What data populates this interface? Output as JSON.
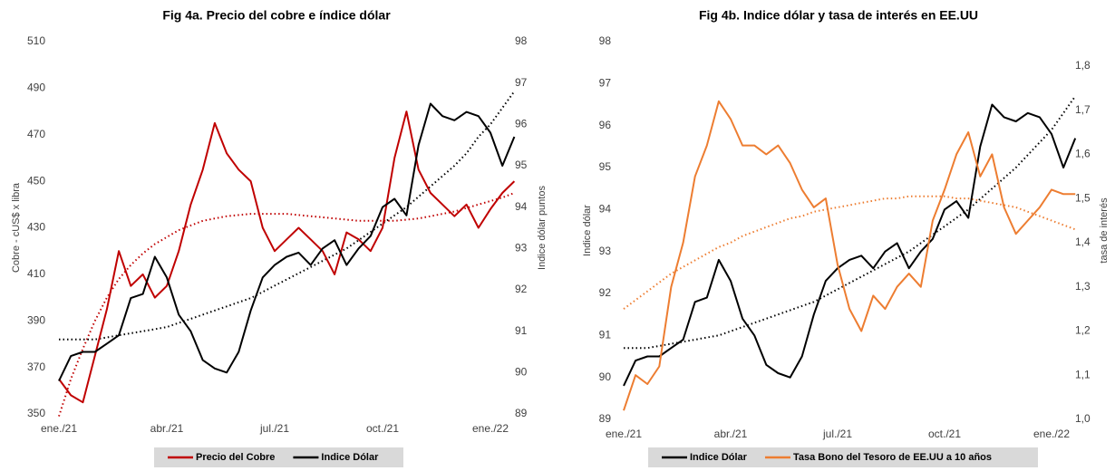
{
  "chart_data": [
    {
      "type": "line",
      "title": "Fig 4a. Precio del cobre e índice dólar",
      "ylabel": "Cobre - cUS$ x libra",
      "y2label": "Indice dólar puntos",
      "categories": [
        "ene./21",
        null,
        null,
        null,
        null,
        null,
        null,
        null,
        null,
        "abr./21",
        null,
        null,
        null,
        null,
        null,
        null,
        null,
        null,
        "jul./21",
        null,
        null,
        null,
        null,
        null,
        null,
        null,
        null,
        "oct./21",
        null,
        null,
        null,
        null,
        null,
        null,
        null,
        null,
        "ene./22",
        null,
        null
      ],
      "ylim": [
        350,
        510
      ],
      "yticks": [
        350,
        370,
        390,
        410,
        430,
        450,
        470,
        490,
        510
      ],
      "y2lim": [
        89,
        98
      ],
      "y2ticks": [
        89,
        90,
        91,
        92,
        93,
        94,
        95,
        96,
        97,
        98
      ],
      "series": [
        {
          "name": "Precio del Cobre",
          "color": "#c00000",
          "values": [
            365,
            358,
            355,
            375,
            395,
            420,
            405,
            410,
            400,
            405,
            420,
            440,
            455,
            475,
            462,
            455,
            450,
            430,
            420,
            425,
            430,
            425,
            420,
            410,
            428,
            425,
            420,
            430,
            460,
            480,
            455,
            445,
            440,
            435,
            440,
            430,
            438,
            445,
            450
          ],
          "trend": [
            349,
            365,
            378,
            390,
            400,
            408,
            414,
            419,
            423,
            426,
            429,
            431,
            433,
            434,
            435,
            435.5,
            436,
            436,
            436,
            436,
            435.5,
            435,
            434.5,
            434,
            433.5,
            433,
            433,
            433,
            433,
            433.5,
            434,
            435,
            436,
            437,
            438.5,
            440,
            441.5,
            443,
            445
          ]
        },
        {
          "name": "Indice Dólar",
          "color": "#000000",
          "axis": "y2",
          "values": [
            89.8,
            90.4,
            90.5,
            90.5,
            90.7,
            90.9,
            91.8,
            91.9,
            92.8,
            92.3,
            91.4,
            91.0,
            90.3,
            90.1,
            90.0,
            90.5,
            91.5,
            92.3,
            92.6,
            92.8,
            92.9,
            92.6,
            93.0,
            93.2,
            92.6,
            93.0,
            93.3,
            94.0,
            94.2,
            93.8,
            95.5,
            96.5,
            96.2,
            96.1,
            96.3,
            96.2,
            95.8,
            95.0,
            95.7
          ],
          "trend": [
            90.8,
            90.8,
            90.8,
            90.8,
            90.85,
            90.9,
            90.95,
            91.0,
            91.05,
            91.1,
            91.2,
            91.3,
            91.4,
            91.5,
            91.6,
            91.7,
            91.8,
            91.95,
            92.1,
            92.25,
            92.4,
            92.55,
            92.7,
            92.85,
            93.0,
            93.2,
            93.4,
            93.6,
            93.8,
            94.0,
            94.25,
            94.5,
            94.75,
            95.0,
            95.3,
            95.7,
            96.0,
            96.4,
            96.8
          ]
        }
      ]
    },
    {
      "type": "line",
      "title": "Fig 4b. Indice dólar y tasa de interés en EE.UU",
      "ylabel": "Indice dólar",
      "y2label": "tasa de interés",
      "categories": [
        "ene./21",
        null,
        null,
        null,
        null,
        null,
        null,
        null,
        null,
        "abr./21",
        null,
        null,
        null,
        null,
        null,
        null,
        null,
        null,
        "jul./21",
        null,
        null,
        null,
        null,
        null,
        null,
        null,
        null,
        "oct./21",
        null,
        null,
        null,
        null,
        null,
        null,
        null,
        null,
        "ene./22",
        null,
        null
      ],
      "ylim": [
        89,
        98
      ],
      "yticks": [
        89,
        90,
        91,
        92,
        93,
        94,
        95,
        96,
        97,
        98
      ],
      "y2lim": [
        1.0,
        1.855
      ],
      "y2ticks": [
        {
          "value": 1.0,
          "label": "1,0"
        },
        {
          "value": 1.1,
          "label": "1,1"
        },
        {
          "value": 1.2,
          "label": "1,2"
        },
        {
          "value": 1.3,
          "label": "1,3"
        },
        {
          "value": 1.4,
          "label": "1,4"
        },
        {
          "value": 1.5,
          "label": "1,5"
        },
        {
          "value": 1.6,
          "label": "1,6"
        },
        {
          "value": 1.7,
          "label": "1,7"
        },
        {
          "value": 1.8,
          "label": "1,8"
        }
      ],
      "series": [
        {
          "name": "Indice Dólar",
          "color": "#000000",
          "values": [
            89.8,
            90.4,
            90.5,
            90.5,
            90.7,
            90.9,
            91.8,
            91.9,
            92.8,
            92.3,
            91.4,
            91.0,
            90.3,
            90.1,
            90.0,
            90.5,
            91.5,
            92.3,
            92.6,
            92.8,
            92.9,
            92.6,
            93.0,
            93.2,
            92.6,
            93.0,
            93.3,
            94.0,
            94.2,
            93.8,
            95.5,
            96.5,
            96.2,
            96.1,
            96.3,
            96.2,
            95.8,
            95.0,
            95.7
          ],
          "trend": [
            90.7,
            90.7,
            90.7,
            90.75,
            90.8,
            90.85,
            90.9,
            90.95,
            91.0,
            91.1,
            91.2,
            91.3,
            91.4,
            91.5,
            91.6,
            91.7,
            91.8,
            91.95,
            92.1,
            92.25,
            92.4,
            92.55,
            92.7,
            92.85,
            93.0,
            93.2,
            93.4,
            93.6,
            93.8,
            94.0,
            94.25,
            94.5,
            94.75,
            95.0,
            95.3,
            95.6,
            95.9,
            96.3,
            96.7
          ]
        },
        {
          "name": "Tasa Bono del Tesoro de EE.UU a 10 años",
          "color": "#ed7d31",
          "axis": "y2",
          "values": [
            1.02,
            1.1,
            1.08,
            1.12,
            1.3,
            1.4,
            1.55,
            1.62,
            1.72,
            1.68,
            1.62,
            1.62,
            1.6,
            1.62,
            1.58,
            1.52,
            1.48,
            1.5,
            1.35,
            1.25,
            1.2,
            1.28,
            1.25,
            1.3,
            1.33,
            1.3,
            1.45,
            1.52,
            1.6,
            1.65,
            1.55,
            1.6,
            1.48,
            1.42,
            1.45,
            1.48,
            1.52,
            1.51,
            1.51
          ],
          "trend": [
            1.25,
            1.27,
            1.29,
            1.31,
            1.33,
            1.345,
            1.36,
            1.375,
            1.39,
            1.4,
            1.415,
            1.425,
            1.435,
            1.445,
            1.455,
            1.46,
            1.47,
            1.475,
            1.48,
            1.485,
            1.49,
            1.495,
            1.5,
            1.5,
            1.505,
            1.505,
            1.505,
            1.505,
            1.5,
            1.5,
            1.495,
            1.49,
            1.485,
            1.48,
            1.47,
            1.46,
            1.45,
            1.44,
            1.43
          ]
        }
      ]
    }
  ]
}
